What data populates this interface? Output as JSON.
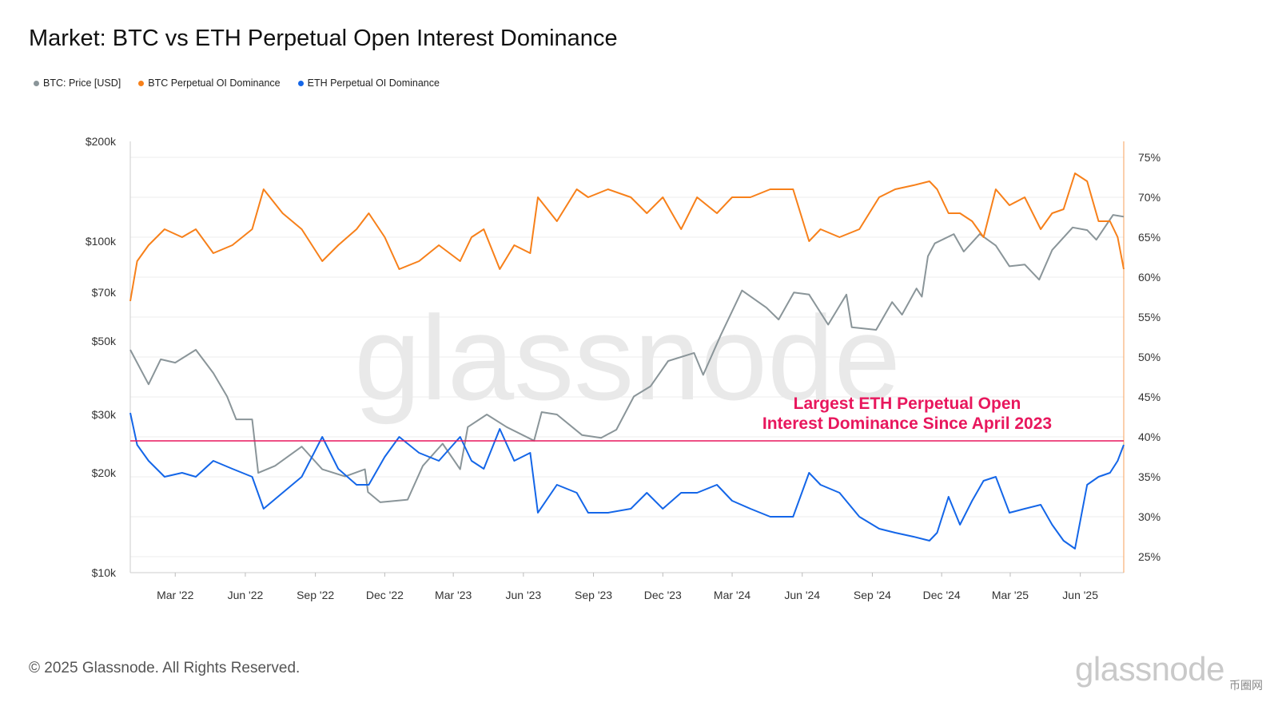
{
  "title": "Market: BTC vs ETH Perpetual Open Interest Dominance",
  "legend": [
    {
      "label": "BTC: Price [USD]",
      "color": "#8a9599"
    },
    {
      "label": "BTC Perpetual OI Dominance",
      "color": "#f7801a"
    },
    {
      "label": "ETH Perpetual OI Dominance",
      "color": "#1466e8"
    }
  ],
  "footer": "© 2025 Glassnode. All Rights Reserved.",
  "watermark": "glassnode",
  "brand_logo": "glassnode",
  "corner_mark": "币圈网",
  "chart_data": {
    "type": "line",
    "x_range": [
      "2022-01-01",
      "2025-07-28"
    ],
    "x_ticks": [
      "Mar '22",
      "Jun '22",
      "Sep '22",
      "Dec '22",
      "Mar '23",
      "Jun '23",
      "Sep '23",
      "Dec '23",
      "Mar '24",
      "Jun '24",
      "Sep '24",
      "Dec '24",
      "Mar '25",
      "Jun '25"
    ],
    "x_tick_dates": [
      "2022-03-01",
      "2022-06-01",
      "2022-09-01",
      "2022-12-01",
      "2023-03-01",
      "2023-06-01",
      "2023-09-01",
      "2023-12-01",
      "2024-03-01",
      "2024-06-01",
      "2024-09-01",
      "2024-12-01",
      "2025-03-01",
      "2025-06-01"
    ],
    "y_left": {
      "scale": "log",
      "range": [
        10000,
        200000
      ],
      "ticks": [
        200000,
        100000,
        70000,
        50000,
        30000,
        20000,
        10000
      ],
      "tick_labels": [
        "$200k",
        "$100k",
        "$70k",
        "$50k",
        "$30k",
        "$20k",
        "$10k"
      ]
    },
    "y_right": {
      "scale": "linear",
      "range": [
        23,
        77
      ],
      "ticks": [
        75,
        70,
        65,
        60,
        55,
        50,
        45,
        40,
        35,
        30,
        25
      ],
      "tick_labels": [
        "75%",
        "70%",
        "65%",
        "60%",
        "55%",
        "50%",
        "45%",
        "40%",
        "35%",
        "30%",
        "25%"
      ]
    },
    "reference_line": {
      "axis": "right",
      "value": 39.5,
      "color": "#e8175d"
    },
    "annotation": [
      "Largest ETH Perpetual Open",
      "Interest Dominance Since April 2023"
    ],
    "grid": true,
    "series": [
      {
        "name": "BTC: Price [USD]",
        "axis": "left",
        "color": "#8a9599",
        "x": [
          "2022-01-01",
          "2022-01-25",
          "2022-02-10",
          "2022-03-01",
          "2022-03-28",
          "2022-04-20",
          "2022-05-08",
          "2022-05-20",
          "2022-06-10",
          "2022-06-18",
          "2022-07-10",
          "2022-08-14",
          "2022-09-10",
          "2022-10-10",
          "2022-11-05",
          "2022-11-09",
          "2022-11-25",
          "2022-12-31",
          "2023-01-20",
          "2023-02-15",
          "2023-03-10",
          "2023-03-20",
          "2023-04-14",
          "2023-05-10",
          "2023-06-15",
          "2023-06-25",
          "2023-07-15",
          "2023-08-17",
          "2023-09-11",
          "2023-10-01",
          "2023-10-24",
          "2023-11-15",
          "2023-12-08",
          "2024-01-11",
          "2024-01-23",
          "2024-02-15",
          "2024-03-14",
          "2024-04-15",
          "2024-05-01",
          "2024-05-21",
          "2024-06-10",
          "2024-07-05",
          "2024-07-29",
          "2024-08-05",
          "2024-09-06",
          "2024-09-27",
          "2024-10-10",
          "2024-10-29",
          "2024-11-05",
          "2024-11-13",
          "2024-11-22",
          "2024-12-17",
          "2024-12-30",
          "2025-01-20",
          "2025-02-10",
          "2025-02-28",
          "2025-03-20",
          "2025-04-08",
          "2025-04-25",
          "2025-05-22",
          "2025-06-10",
          "2025-06-22",
          "2025-07-14",
          "2025-07-28"
        ],
        "values": [
          47000,
          37000,
          44000,
          43000,
          47000,
          40000,
          34000,
          29000,
          29000,
          20000,
          21000,
          24000,
          20500,
          19500,
          20500,
          17500,
          16300,
          16600,
          21000,
          24500,
          20500,
          27500,
          30000,
          27500,
          25000,
          30500,
          30000,
          26000,
          25500,
          27000,
          34000,
          36500,
          43500,
          46000,
          39500,
          52000,
          71000,
          63000,
          58000,
          70000,
          69000,
          56000,
          69000,
          55000,
          54000,
          65500,
          60000,
          72000,
          68000,
          90000,
          98500,
          105000,
          93000,
          105000,
          97000,
          84000,
          85000,
          76500,
          94000,
          110000,
          108000,
          101000,
          120000,
          118500
        ]
      },
      {
        "name": "BTC Perpetual OI Dominance",
        "axis": "right",
        "color": "#f7801a",
        "x": [
          "2022-01-01",
          "2022-01-10",
          "2022-01-25",
          "2022-02-15",
          "2022-03-10",
          "2022-03-28",
          "2022-04-20",
          "2022-05-15",
          "2022-06-10",
          "2022-06-25",
          "2022-07-20",
          "2022-08-14",
          "2022-09-10",
          "2022-10-01",
          "2022-10-25",
          "2022-11-10",
          "2022-12-01",
          "2022-12-20",
          "2023-01-15",
          "2023-02-10",
          "2023-03-10",
          "2023-03-25",
          "2023-04-10",
          "2023-05-01",
          "2023-05-20",
          "2023-06-10",
          "2023-06-20",
          "2023-07-15",
          "2023-08-10",
          "2023-08-25",
          "2023-09-20",
          "2023-10-20",
          "2023-11-10",
          "2023-12-01",
          "2023-12-25",
          "2024-01-15",
          "2024-02-10",
          "2024-03-01",
          "2024-03-25",
          "2024-04-20",
          "2024-05-20",
          "2024-06-10",
          "2024-06-25",
          "2024-07-20",
          "2024-08-15",
          "2024-09-10",
          "2024-10-01",
          "2024-10-25",
          "2024-11-15",
          "2024-11-25",
          "2024-12-10",
          "2024-12-25",
          "2025-01-10",
          "2025-01-25",
          "2025-02-10",
          "2025-02-28",
          "2025-03-20",
          "2025-04-10",
          "2025-04-25",
          "2025-05-10",
          "2025-05-25",
          "2025-06-10",
          "2025-06-25",
          "2025-07-10",
          "2025-07-20",
          "2025-07-28"
        ],
        "values": [
          57,
          62,
          64,
          66,
          65,
          66,
          63,
          64,
          66,
          71,
          68,
          66,
          62,
          64,
          66,
          68,
          65,
          61,
          62,
          64,
          62,
          65,
          66,
          61,
          64,
          63,
          70,
          67,
          71,
          70,
          71,
          70,
          68,
          70,
          66,
          70,
          68,
          70,
          70,
          71,
          71,
          64.5,
          66,
          65,
          66,
          70,
          71,
          71.5,
          72,
          71,
          68,
          68,
          67,
          65,
          71,
          69,
          70,
          66,
          68,
          68.5,
          73,
          72,
          67,
          67,
          65,
          61
        ]
      },
      {
        "name": "ETH Perpetual OI Dominance",
        "axis": "right",
        "color": "#1466e8",
        "x": [
          "2022-01-01",
          "2022-01-10",
          "2022-01-25",
          "2022-02-15",
          "2022-03-10",
          "2022-03-28",
          "2022-04-20",
          "2022-05-15",
          "2022-06-10",
          "2022-06-25",
          "2022-07-20",
          "2022-08-14",
          "2022-09-10",
          "2022-10-01",
          "2022-10-25",
          "2022-11-10",
          "2022-12-01",
          "2022-12-20",
          "2023-01-15",
          "2023-02-10",
          "2023-03-10",
          "2023-03-25",
          "2023-04-10",
          "2023-05-01",
          "2023-05-20",
          "2023-06-10",
          "2023-06-20",
          "2023-07-15",
          "2023-08-10",
          "2023-08-25",
          "2023-09-20",
          "2023-10-20",
          "2023-11-10",
          "2023-12-01",
          "2023-12-25",
          "2024-01-15",
          "2024-02-10",
          "2024-03-01",
          "2024-03-25",
          "2024-04-20",
          "2024-05-20",
          "2024-06-10",
          "2024-06-25",
          "2024-07-20",
          "2024-08-15",
          "2024-09-10",
          "2024-10-01",
          "2024-10-25",
          "2024-11-15",
          "2024-11-25",
          "2024-12-10",
          "2024-12-25",
          "2025-01-10",
          "2025-01-25",
          "2025-02-10",
          "2025-02-28",
          "2025-03-20",
          "2025-04-10",
          "2025-04-25",
          "2025-05-10",
          "2025-05-25",
          "2025-06-10",
          "2025-06-25",
          "2025-07-10",
          "2025-07-20",
          "2025-07-28"
        ],
        "values": [
          43,
          39,
          37,
          35,
          35.5,
          35,
          37,
          36,
          35,
          31,
          33,
          35,
          40,
          36,
          34,
          34,
          37.5,
          40,
          38,
          37,
          40,
          37,
          36,
          41,
          37,
          38,
          30.5,
          34,
          33,
          30.5,
          30.5,
          31,
          33,
          31,
          33,
          33,
          34,
          32,
          31,
          30,
          30,
          35.5,
          34,
          33,
          30,
          28.5,
          28,
          27.5,
          27,
          28,
          32.5,
          29,
          32,
          34.5,
          35,
          30.5,
          31,
          31.5,
          29,
          27,
          26,
          34,
          35,
          35.5,
          37,
          39
        ]
      }
    ]
  }
}
